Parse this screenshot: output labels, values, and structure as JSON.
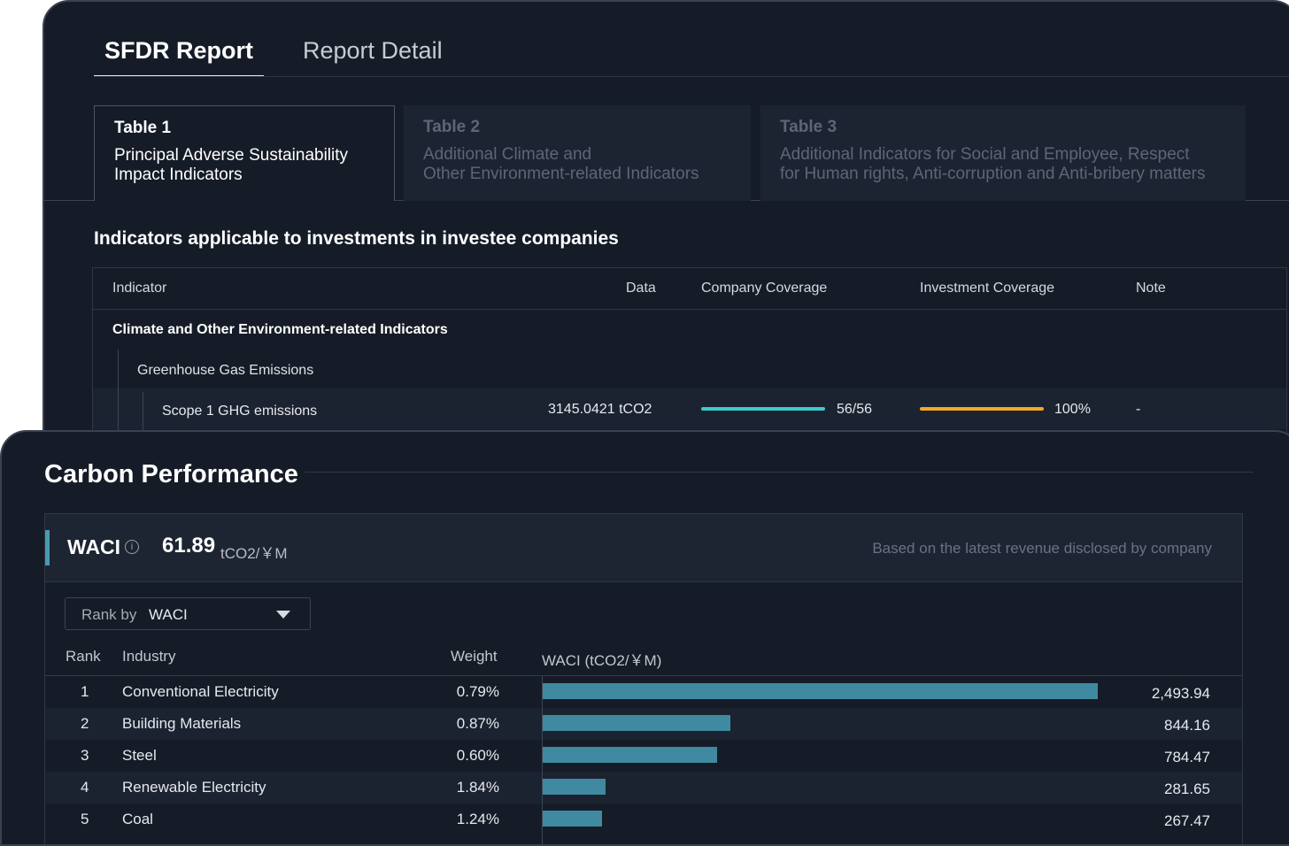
{
  "sfdr": {
    "tabs": [
      {
        "label": "SFDR Report",
        "active": true
      },
      {
        "label": "Report Detail",
        "active": false
      }
    ],
    "tables": [
      {
        "title": "Table 1",
        "line1": "Principal Adverse Sustainability",
        "line2": "Impact Indicators",
        "active": true
      },
      {
        "title": "Table 2",
        "line1": "Additional Climate and",
        "line2": "Other Environment-related Indicators",
        "active": false
      },
      {
        "title": "Table 3",
        "line1": "Additional Indicators for Social and Employee, Respect",
        "line2": "for Human rights, Anti-corruption and Anti-bribery matters",
        "active": false
      }
    ],
    "section_title": "Indicators applicable to investments in investee companies",
    "columns": {
      "indicator": "Indicator",
      "data": "Data",
      "company_coverage": "Company Coverage",
      "investment_coverage": "Investment Coverage",
      "note": "Note"
    },
    "group": "Climate and Other Environment-related Indicators",
    "subgroup": "Greenhouse Gas Emissions",
    "row": {
      "name": "Scope 1 GHG emissions",
      "data": "3145.0421 tCO2",
      "company_coverage": "56/56",
      "company_coverage_fraction": 1.0,
      "investment_coverage": "100%",
      "investment_coverage_fraction": 1.0,
      "note": "-"
    },
    "colors": {
      "company_bar": "#3ec9cf",
      "investment_bar": "#f2a922"
    }
  },
  "carbon": {
    "title": "Carbon Performance",
    "waci_label": "WACI",
    "info_icon": "info-icon",
    "waci_value": "61.89",
    "waci_unit": "tCO2/￥M",
    "waci_note": "Based on the latest revenue disclosed by company",
    "rank_by_label": "Rank by",
    "rank_by_value": "WACI",
    "columns": {
      "rank": "Rank",
      "industry": "Industry",
      "weight": "Weight",
      "waci": "WACI (tCO2/￥M)"
    },
    "accent_color": "#4a9ab0",
    "bar_color": "#3f8aa0"
  },
  "chart_data": {
    "type": "bar",
    "categories": [
      "Conventional Electricity",
      "Building Materials",
      "Steel",
      "Renewable Electricity",
      "Coal"
    ],
    "ranks": [
      "1",
      "2",
      "3",
      "4",
      "5"
    ],
    "weights": [
      "0.79%",
      "0.87%",
      "0.60%",
      "1.84%",
      "1.24%"
    ],
    "values": [
      2493.94,
      844.16,
      784.47,
      281.65,
      267.47
    ],
    "value_labels": [
      "2,493.94",
      "844.16",
      "784.47",
      "281.65",
      "267.47"
    ],
    "orientation": "horizontal",
    "xlabel": "WACI (tCO2/￥M)"
  }
}
